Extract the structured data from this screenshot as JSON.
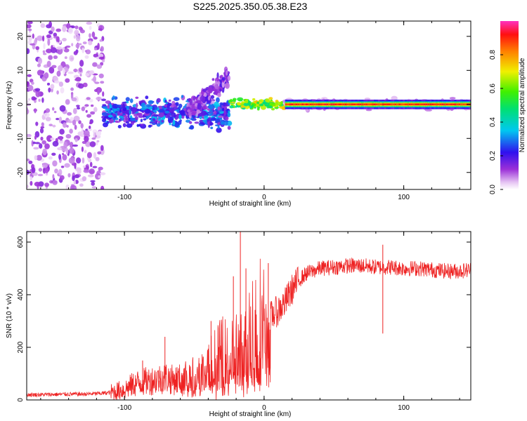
{
  "figure_title": "S225.2025.350.05.38.E23",
  "chart_data": [
    {
      "type": "heatmap",
      "title": "S225.2025.350.05.38.E23",
      "xlabel": "Height of straight line (km)",
      "ylabel": "Frequency (Hz)",
      "xlim": [
        -170,
        148
      ],
      "ylim": [
        -25,
        24.5
      ],
      "xticks": [
        -100,
        0,
        100
      ],
      "yticks": [
        -20,
        -10,
        0,
        10,
        20
      ],
      "grid": false,
      "colorbar": {
        "label": "Normalized spectral amplitude",
        "range": [
          0,
          1
        ],
        "ticks": [
          0.0,
          0.2,
          0.4,
          0.6,
          0.8
        ]
      },
      "regions": [
        {
          "x_range": [
            -170,
            -115
          ],
          "f_range": [
            -25,
            24.5
          ],
          "amplitude_range": [
            0.02,
            0.15
          ],
          "description": "scattered noise"
        },
        {
          "x_range": [
            -115,
            -25
          ],
          "f_range": [
            -8,
            3
          ],
          "amplitude_range": [
            0.1,
            0.35
          ],
          "description": "broad signal cloud"
        },
        {
          "x_range": [
            -55,
            -25
          ],
          "f_range": [
            -14,
            10
          ],
          "amplitude_range": [
            0.05,
            0.2
          ],
          "description": "rising branch"
        },
        {
          "x_range": [
            -25,
            15
          ],
          "f_range": [
            -3,
            2
          ],
          "amplitude_range": [
            0.4,
            1.0
          ],
          "description": "emerging tone"
        },
        {
          "x_range": [
            15,
            148
          ],
          "f_range": [
            -1.5,
            1.5
          ],
          "amplitude_range": [
            0.5,
            1.0
          ],
          "description": "steady carrier at 0 Hz"
        }
      ]
    },
    {
      "type": "line",
      "xlabel": "Height of straight line (km)",
      "ylabel": "SNR (10 * v/v)",
      "xlim": [
        -170,
        148
      ],
      "ylim": [
        0,
        640
      ],
      "xticks": [
        -100,
        0,
        100
      ],
      "yticks": [
        0,
        200,
        400,
        600
      ],
      "grid": false,
      "series": [
        {
          "name": "SNR",
          "color": "#ee2222",
          "x": [
            -170,
            -160,
            -150,
            -140,
            -130,
            -120,
            -110,
            -100,
            -95,
            -90,
            -85,
            -80,
            -75,
            -70,
            -65,
            -60,
            -55,
            -50,
            -45,
            -40,
            -35,
            -30,
            -25,
            -20,
            -18,
            -15,
            -12,
            -10,
            -5,
            0,
            5,
            10,
            15,
            20,
            25,
            30,
            40,
            50,
            60,
            70,
            80,
            90,
            100,
            110,
            120,
            130,
            140,
            148
          ],
          "values": [
            20,
            20,
            21,
            22,
            22,
            24,
            28,
            40,
            55,
            65,
            70,
            75,
            80,
            85,
            75,
            80,
            90,
            100,
            110,
            120,
            140,
            160,
            170,
            180,
            175,
            165,
            200,
            260,
            290,
            310,
            320,
            340,
            370,
            420,
            455,
            480,
            500,
            505,
            510,
            510,
            505,
            505,
            500,
            500,
            495,
            490,
            490,
            495
          ],
          "spikes": [
            {
              "x": -87,
              "value": 150
            },
            {
              "x": -71,
              "value": 240
            },
            {
              "x": -38,
              "value": 300
            },
            {
              "x": -22,
              "value": 470
            },
            {
              "x": -17,
              "value": 640
            },
            {
              "x": -13,
              "value": 500
            },
            {
              "x": 3,
              "value": 520
            },
            {
              "x": 85,
              "value": 590
            }
          ]
        }
      ]
    }
  ]
}
